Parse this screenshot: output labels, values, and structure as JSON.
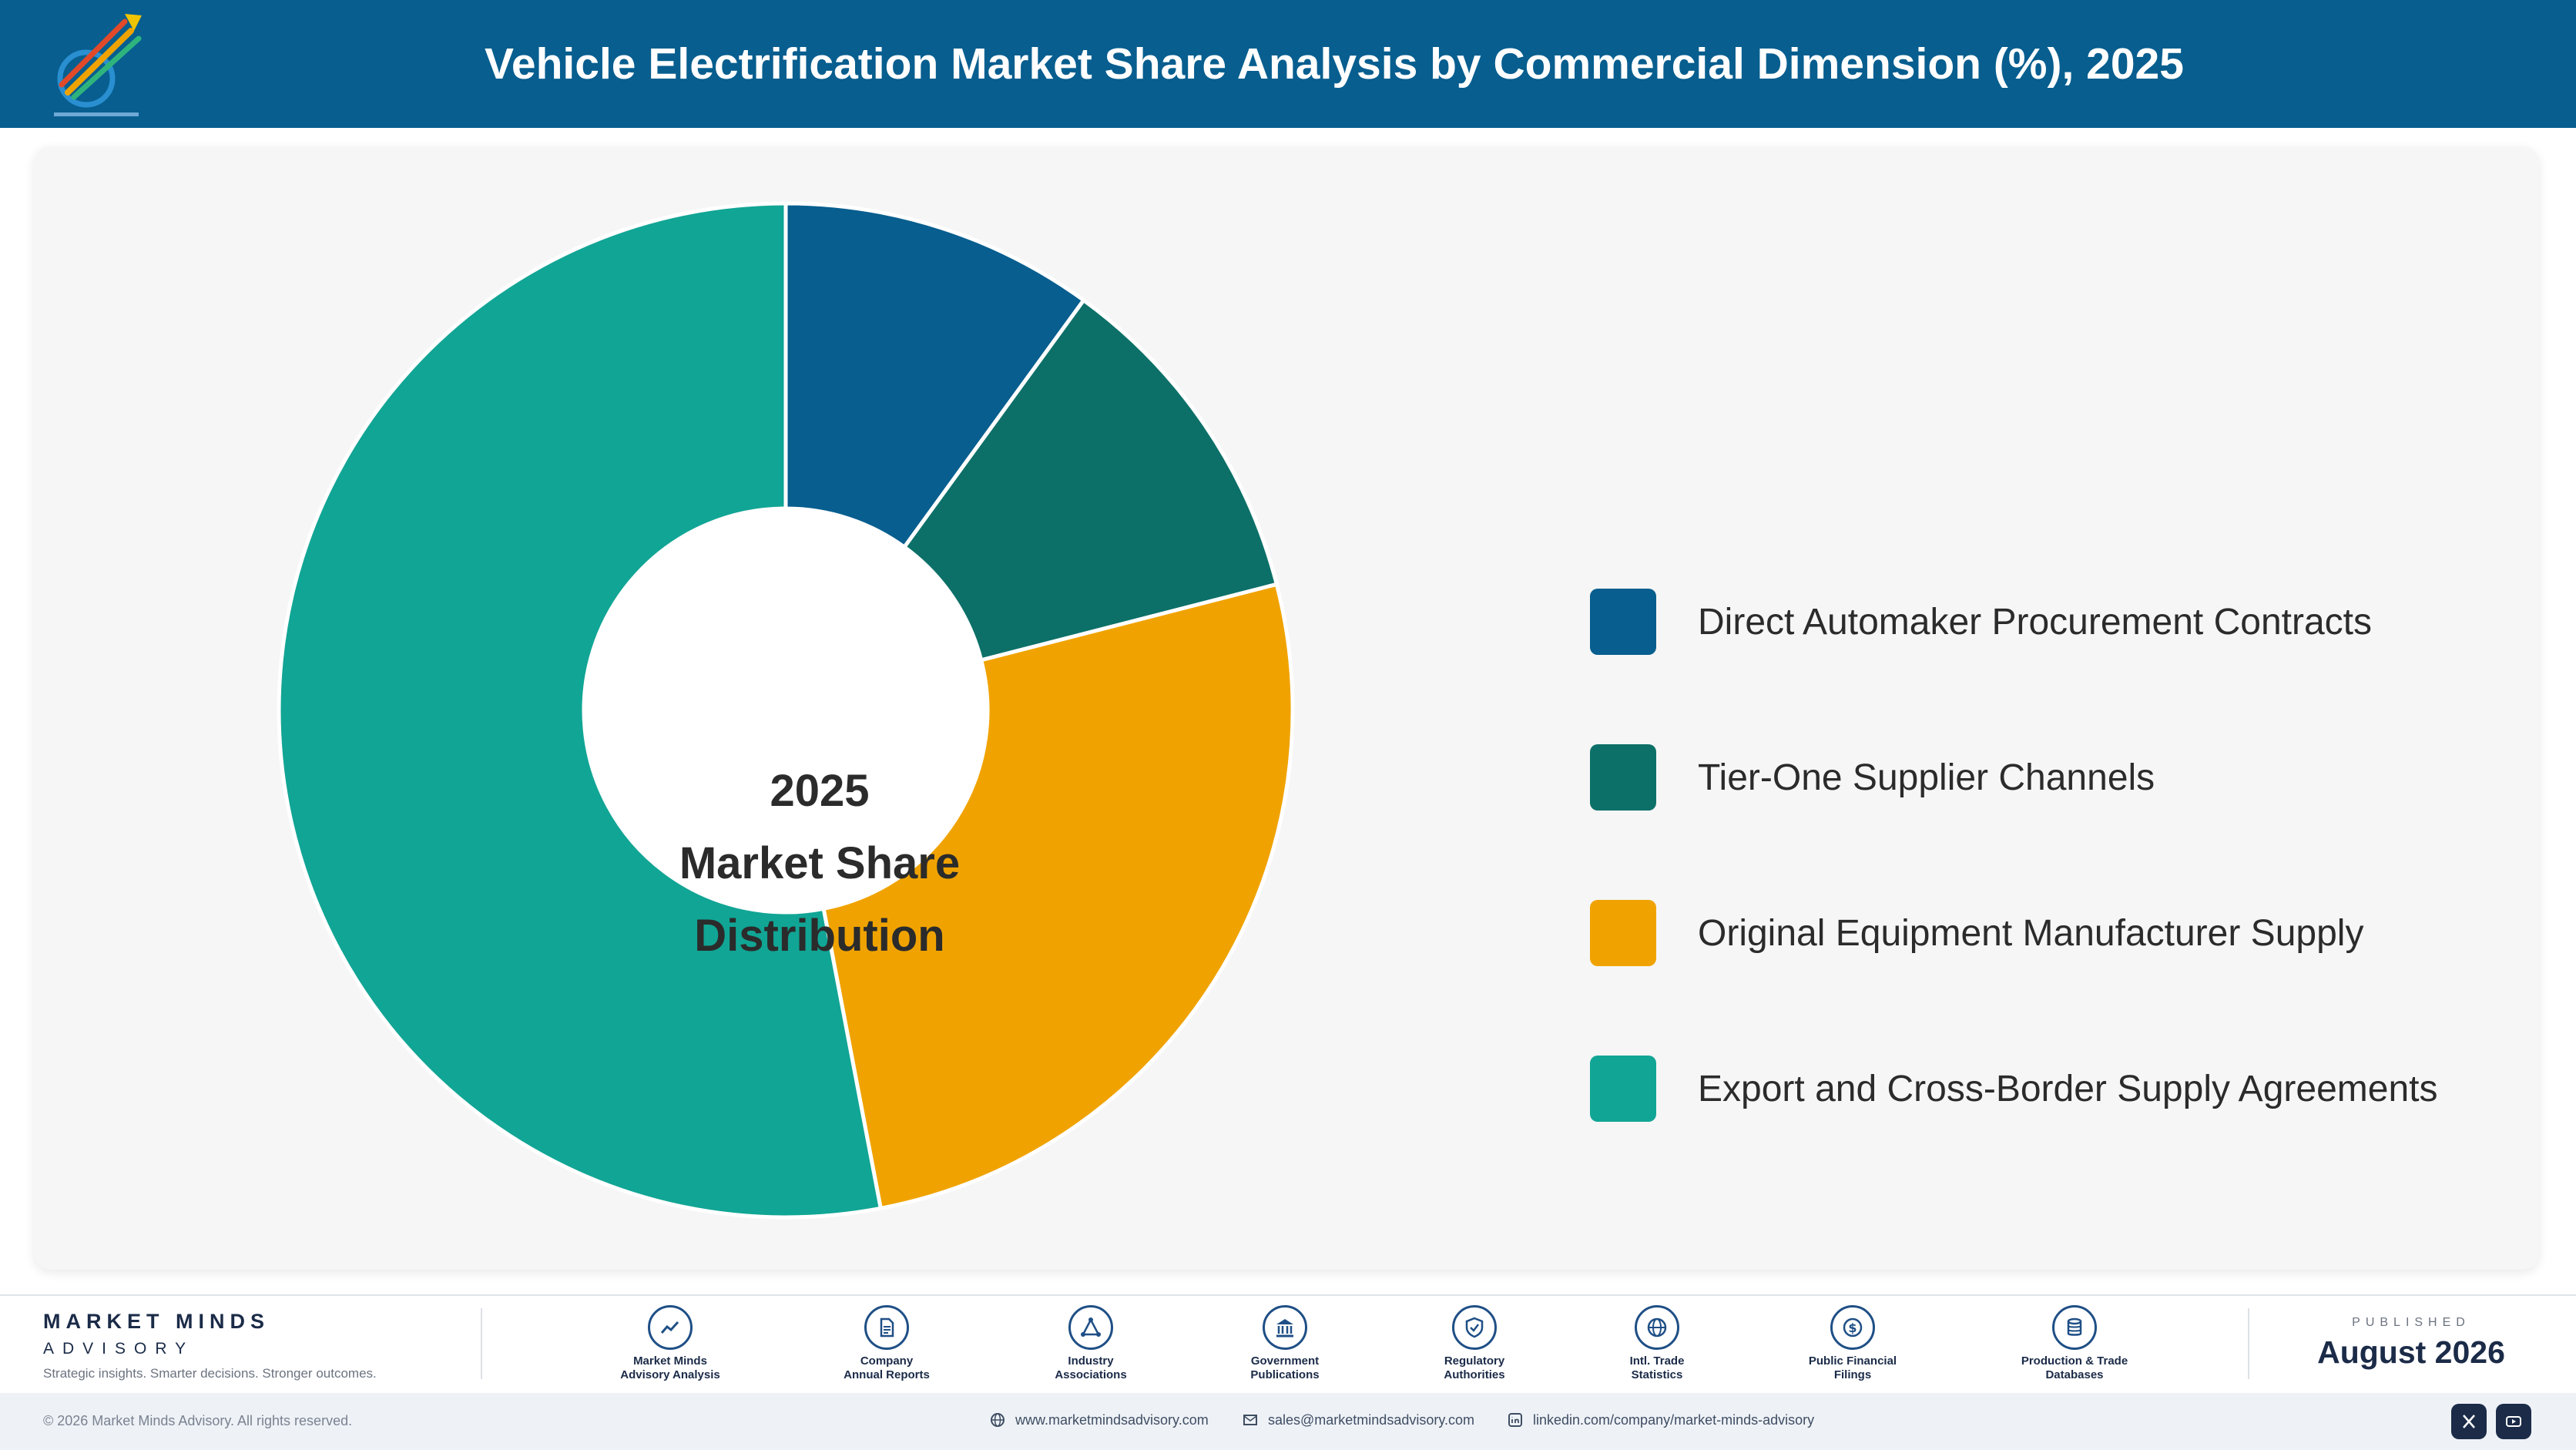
{
  "header": {
    "title": "Vehicle Electrification Market Share Analysis by Commercial Dimension (%), 2025"
  },
  "chart_data": {
    "type": "pie",
    "variant": "donut",
    "center_label": [
      "2025",
      "Market Share",
      "Distribution"
    ],
    "categories": [
      "Direct Automaker Procurement Contracts",
      "Tier-One Supplier Channels",
      "Original Equipment Manufacturer Supply",
      "Export and Cross-Border Supply Agreements"
    ],
    "values": [
      10,
      11,
      26,
      53
    ],
    "colors": [
      "#075e8f",
      "#0c7068",
      "#f0a300",
      "#11a595"
    ],
    "legend_position": "right"
  },
  "footer": {
    "brand_name": "MARKET MINDS",
    "brand_sub": "ADVISORY",
    "brand_tagline": "Strategic insights. Smarter decisions. Stronger outcomes.",
    "sources": [
      {
        "line1": "Market Minds",
        "line2": "Advisory Analysis",
        "icon": "trend-line-icon"
      },
      {
        "line1": "Company",
        "line2": "Annual Reports",
        "icon": "document-icon"
      },
      {
        "line1": "Industry",
        "line2": "Associations",
        "icon": "network-icon"
      },
      {
        "line1": "Government",
        "line2": "Publications",
        "icon": "government-building-icon"
      },
      {
        "line1": "Regulatory",
        "line2": "Authorities",
        "icon": "shield-check-icon"
      },
      {
        "line1": "Intl. Trade",
        "line2": "Statistics",
        "icon": "globe-icon"
      },
      {
        "line1": "Public Financial",
        "line2": "Filings",
        "icon": "dollar-coin-icon"
      },
      {
        "line1": "Production & Trade",
        "line2": "Databases",
        "icon": "database-icon"
      }
    ],
    "published_label": "PUBLISHED",
    "published_date": "August 2026",
    "copyright": "© 2026 Market Minds Advisory. All rights reserved.",
    "website": "www.marketmindsadvisory.com",
    "email": "sales@marketmindsadvisory.com",
    "linkedin": "linkedin.com/company/market-minds-advisory"
  }
}
